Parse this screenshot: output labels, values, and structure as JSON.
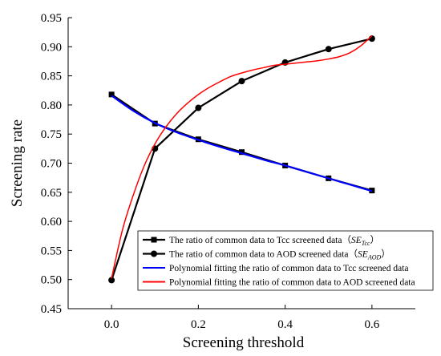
{
  "chart_data": {
    "type": "line",
    "title": "",
    "xlabel": "Screening threshold",
    "ylabel": "Screening rate",
    "xlim": [
      -0.1,
      0.7
    ],
    "ylim": [
      0.45,
      0.95
    ],
    "xticks": [
      0.0,
      0.2,
      0.4,
      0.6
    ],
    "xtick_labels": [
      "0.0",
      "0.2",
      "0.4",
      "0.6"
    ],
    "yticks": [
      0.45,
      0.5,
      0.55,
      0.6,
      0.65,
      0.7,
      0.75,
      0.8,
      0.85,
      0.9,
      0.95
    ],
    "ytick_labels": [
      "0.45",
      "0.50",
      "0.55",
      "0.60",
      "0.65",
      "0.70",
      "0.75",
      "0.80",
      "0.85",
      "0.90",
      "0.95"
    ],
    "grid": false,
    "legend_position": "bottom-right",
    "series": [
      {
        "name": "The ratio of common data to Tcc screened data（SE_Tcc）",
        "legend_main": "The ratio of common data to Tcc screened data（",
        "legend_sym": "SE",
        "legend_sub": "Tcc",
        "legend_tail": "）",
        "color": "#000000",
        "marker": "square",
        "x": [
          0.0,
          0.1,
          0.2,
          0.3,
          0.4,
          0.5,
          0.6
        ],
        "y": [
          0.818,
          0.768,
          0.741,
          0.719,
          0.696,
          0.674,
          0.653
        ]
      },
      {
        "name": "The ratio of common data to AOD screened data（SE_AOD）",
        "legend_main": "The ratio of common data to AOD screened data（",
        "legend_sym": "SE",
        "legend_sub": "AOD",
        "legend_tail": "）",
        "color": "#000000",
        "marker": "circle",
        "x": [
          0.0,
          0.1,
          0.2,
          0.3,
          0.4,
          0.5,
          0.6
        ],
        "y": [
          0.499,
          0.725,
          0.795,
          0.841,
          0.873,
          0.896,
          0.914
        ]
      },
      {
        "name": "Polynomial fitting the ratio of common data to Tcc screened data",
        "color": "#0000ff",
        "marker": "none",
        "x": [
          0.0,
          0.05,
          0.1,
          0.15,
          0.2,
          0.25,
          0.3,
          0.35,
          0.4,
          0.45,
          0.5,
          0.55,
          0.6
        ],
        "y": [
          0.816,
          0.79,
          0.769,
          0.753,
          0.74,
          0.728,
          0.717,
          0.706,
          0.696,
          0.685,
          0.674,
          0.663,
          0.652
        ]
      },
      {
        "name": "Polynomial fitting the ratio of common data to AOD screened data",
        "color": "#ff0000",
        "marker": "none",
        "x": [
          0.0,
          0.025,
          0.05,
          0.075,
          0.1,
          0.125,
          0.15,
          0.175,
          0.2,
          0.225,
          0.25,
          0.275,
          0.3,
          0.325,
          0.35,
          0.375,
          0.4,
          0.425,
          0.45,
          0.475,
          0.5,
          0.525,
          0.55,
          0.575,
          0.6
        ],
        "y": [
          0.502,
          0.585,
          0.645,
          0.695,
          0.733,
          0.762,
          0.785,
          0.803,
          0.818,
          0.83,
          0.84,
          0.849,
          0.855,
          0.86,
          0.864,
          0.868,
          0.87,
          0.872,
          0.874,
          0.876,
          0.879,
          0.883,
          0.89,
          0.902,
          0.919
        ]
      }
    ]
  }
}
